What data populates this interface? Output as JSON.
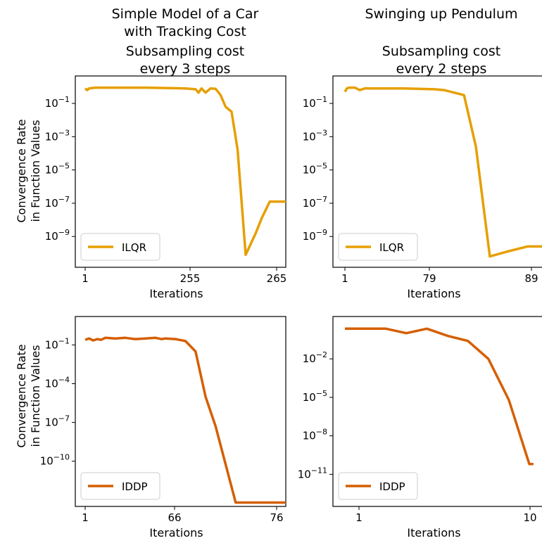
{
  "chart_data": [
    {
      "id": "car-ilqr",
      "type": "line",
      "title_lines": [
        "Simple Model of a Car",
        "with Tracking Cost",
        "Subsampling cost",
        "every 3 steps"
      ],
      "xlabel": "Iterations",
      "ylabel_lines": [
        "Convergence Rate",
        "in Function Values"
      ],
      "xticks": [
        "1",
        "255",
        "265"
      ],
      "yscale": "log",
      "yticks": [
        "10^-1",
        "10^-3",
        "10^-5",
        "10^-7",
        "10^-9"
      ],
      "ylim_exp": [
        -10.85,
        0.65
      ],
      "legend": "lower left",
      "series": [
        {
          "name": "ILQR",
          "color": "#E69F00",
          "x": [
            0,
            0.01,
            0.02,
            0.05,
            0.3,
            0.5,
            0.55,
            0.565,
            0.58,
            0.6,
            0.625,
            0.65,
            0.675,
            0.7,
            0.73,
            0.76,
            0.8,
            0.85,
            0.88,
            0.92,
            1.0
          ],
          "y_exp": [
            -0.1,
            -0.2,
            -0.1,
            -0.05,
            -0.05,
            -0.1,
            -0.15,
            -0.35,
            -0.1,
            -0.35,
            -0.1,
            -0.12,
            -0.5,
            -1.2,
            -1.5,
            -3.8,
            -10.1,
            -8.8,
            -7.9,
            -6.9,
            -6.9
          ]
        }
      ]
    },
    {
      "id": "pendulum-ilqr",
      "type": "line",
      "title_lines": [
        "Swinging up Pendulum",
        "",
        "Subsampling cost",
        "every 2 steps"
      ],
      "xlabel": "Iterations",
      "xticks": [
        "1",
        "79",
        "89"
      ],
      "yscale": "log",
      "yticks": [
        "10^-1",
        "10^-3",
        "10^-5",
        "10^-7",
        "10^-9"
      ],
      "ylim_exp": [
        -10.85,
        0.65
      ],
      "legend": "lower left",
      "series": [
        {
          "name": "ILQR",
          "color": "#E69F00",
          "x": [
            0,
            0.01,
            0.02,
            0.05,
            0.075,
            0.1,
            0.3,
            0.45,
            0.5,
            0.55,
            0.6,
            0.66,
            0.73,
            0.82,
            0.92,
            1.0
          ],
          "y_exp": [
            -0.3,
            -0.1,
            -0.05,
            -0.05,
            -0.2,
            -0.1,
            -0.1,
            -0.15,
            -0.2,
            -0.35,
            -0.5,
            -3.6,
            -10.2,
            -9.9,
            -9.6,
            -9.6
          ]
        }
      ]
    },
    {
      "id": "car-iddp",
      "type": "line",
      "xlabel": "Iterations",
      "ylabel_lines": [
        "Convergence Rate",
        "in Function Values"
      ],
      "xticks": [
        "1",
        "66",
        "76"
      ],
      "yscale": "log",
      "yticks": [
        "10^-1",
        "10^-4",
        "10^-7",
        "10^-10"
      ],
      "ylim_exp": [
        -13.5,
        1.2
      ],
      "legend": "lower left",
      "series": [
        {
          "name": "IDDP",
          "color": "#D55E00",
          "x": [
            0,
            0.02,
            0.04,
            0.06,
            0.08,
            0.1,
            0.15,
            0.2,
            0.25,
            0.3,
            0.35,
            0.38,
            0.4,
            0.45,
            0.5,
            0.55,
            0.6,
            0.65,
            0.75,
            0.85,
            0.93,
            1.0
          ],
          "y_exp": [
            -0.6,
            -0.5,
            -0.65,
            -0.55,
            -0.6,
            -0.45,
            -0.5,
            -0.45,
            -0.55,
            -0.5,
            -0.45,
            -0.55,
            -0.5,
            -0.55,
            -0.7,
            -1.5,
            -5,
            -7.3,
            -13.2,
            -13.2,
            -13.2,
            -13.2
          ]
        }
      ]
    },
    {
      "id": "pendulum-iddp",
      "type": "line",
      "xlabel": "Iterations",
      "xticks": [
        "1",
        "10"
      ],
      "yscale": "log",
      "yticks": [
        "10^-2",
        "10^-5",
        "10^-8",
        "10^-11"
      ],
      "ylim_exp": [
        -13.5,
        1.3
      ],
      "legend": "lower left",
      "series": [
        {
          "name": "IDDP",
          "color": "#D55E00",
          "x": [
            1,
            2,
            3,
            4,
            5,
            6,
            7,
            8,
            9,
            10,
            10.2
          ],
          "y_exp": [
            0.35,
            0.35,
            0.35,
            0.0,
            0.35,
            -0.2,
            -0.6,
            -2.0,
            -5.2,
            -10.2,
            -10.2
          ]
        }
      ]
    }
  ]
}
